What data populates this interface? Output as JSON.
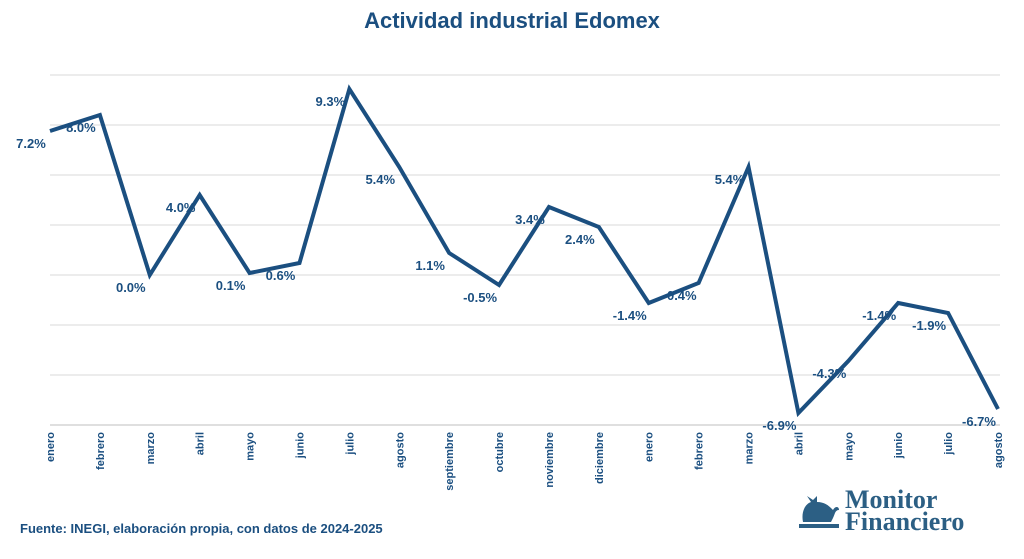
{
  "chart_data": {
    "type": "line",
    "title": "Actividad industrial Edomex",
    "categories": [
      "enero",
      "febrero",
      "marzo",
      "abril",
      "mayo",
      "junio",
      "julio",
      "agosto",
      "septiembre",
      "octubre",
      "noviembre",
      "diciembre",
      "enero",
      "febrero",
      "marzo",
      "abril",
      "mayo",
      "junio",
      "julio",
      "agosto"
    ],
    "values": [
      7.2,
      8.0,
      0.0,
      4.0,
      0.1,
      0.6,
      9.3,
      5.4,
      1.1,
      -0.5,
      3.4,
      2.4,
      -1.4,
      -0.4,
      5.4,
      -6.9,
      -4.3,
      -1.4,
      -1.9,
      -6.7
    ],
    "labels": [
      "7.2%",
      "8.0%",
      "0.0%",
      "4.0%",
      "0.1%",
      "0.6%",
      "9.3%",
      "5.4%",
      "1.1%",
      "-0.5%",
      "3.4%",
      "2.4%",
      "-1.4%",
      "-0.4%",
      "5.4%",
      "-6.9%",
      "-4.3%",
      "-1.4%",
      "-1.9%",
      "-6.7%"
    ],
    "ylim": [
      -7.5,
      10
    ],
    "grid": true,
    "legend": "none",
    "line_color": "#1b4f80",
    "xlabel": "",
    "ylabel": ""
  },
  "source": "Fuente: INEGI, elaboración propia, con datos de 2024-2025",
  "logo": {
    "line1": "Monitor",
    "line2": "Financiero"
  }
}
